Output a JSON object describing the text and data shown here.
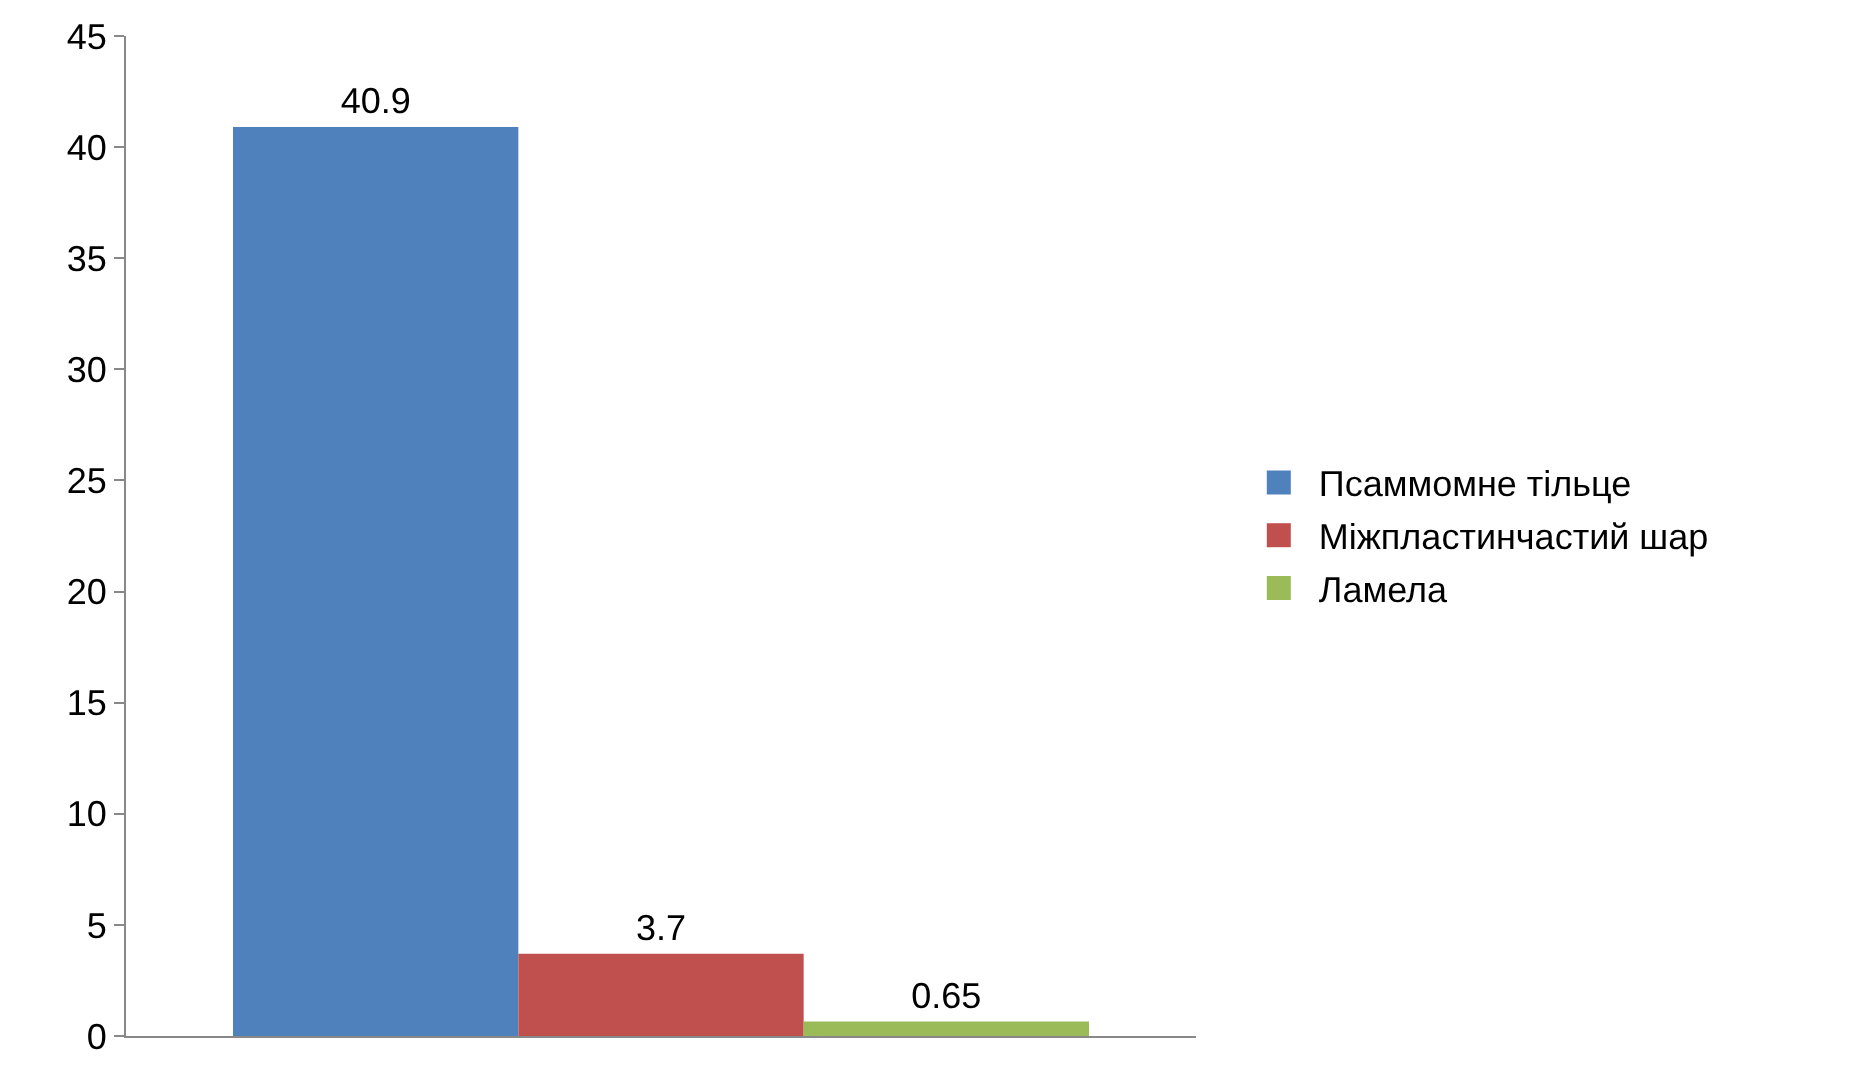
{
  "chart_data": {
    "type": "bar",
    "categories": [
      null
    ],
    "series": [
      {
        "name": "Псаммомне тільце",
        "color": "#4f81bd",
        "values": [
          40.9
        ]
      },
      {
        "name": "Міжпластинчастий шар",
        "color": "#c0504d",
        "values": [
          3.7
        ]
      },
      {
        "name": "Ламела",
        "color": "#9bbb59",
        "values": [
          0.65
        ]
      }
    ],
    "ylim": [
      0,
      45
    ],
    "yticks": [
      0,
      5,
      10,
      15,
      20,
      25,
      30,
      35,
      40,
      45
    ],
    "grid": false,
    "legend": "right",
    "data_labels": true,
    "tick_labels": "y"
  }
}
